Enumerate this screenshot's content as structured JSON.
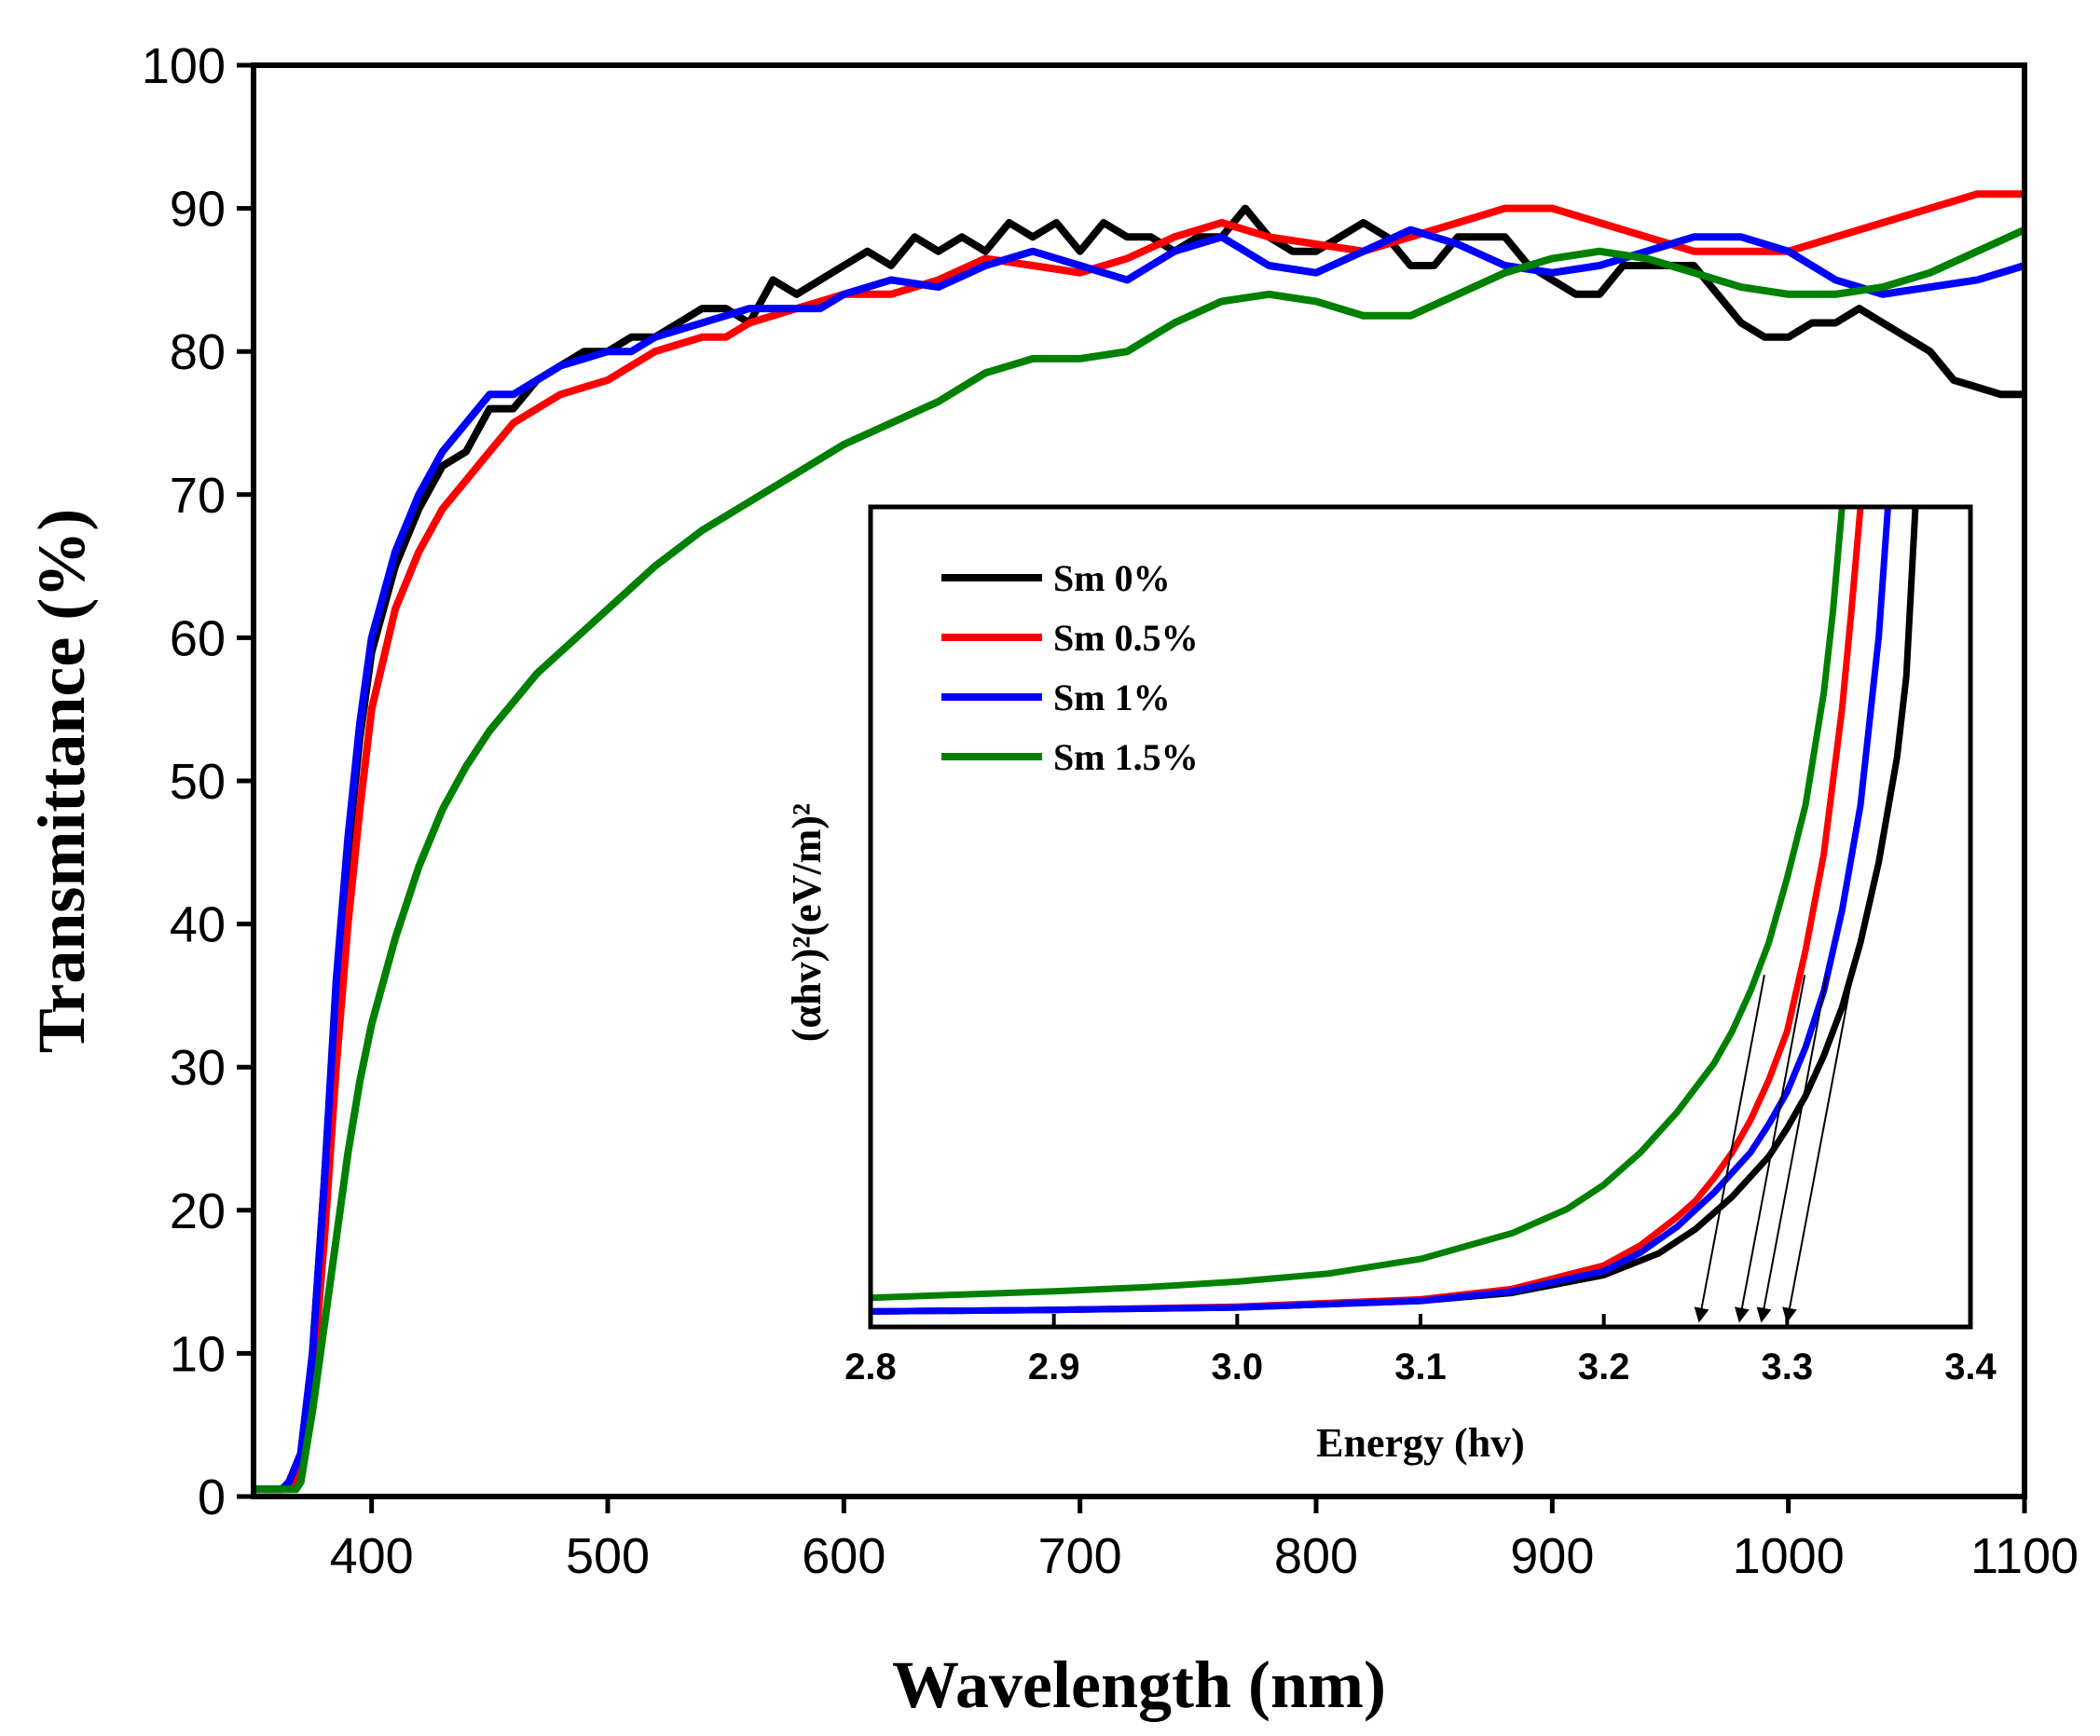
{
  "chart_data": [
    {
      "type": "line",
      "name": "main",
      "xlabel": "Wavelength (nm)",
      "ylabel": "Transmittance (%)",
      "xlim": [
        350,
        1100
      ],
      "ylim": [
        0,
        100
      ],
      "xticks": [
        "400",
        "500",
        "600",
        "700",
        "800",
        "900",
        "1000",
        "1100"
      ],
      "yticks": [
        "0",
        "10",
        "20",
        "30",
        "40",
        "50",
        "60",
        "70",
        "80",
        "90",
        "100"
      ],
      "series": [
        {
          "name": "Sm 0%",
          "color": "#000000",
          "x": [
            350,
            362,
            365,
            370,
            375,
            380,
            385,
            390,
            395,
            400,
            410,
            420,
            430,
            440,
            450,
            460,
            470,
            480,
            490,
            500,
            510,
            520,
            530,
            540,
            550,
            560,
            570,
            580,
            590,
            600,
            610,
            620,
            630,
            640,
            650,
            660,
            670,
            680,
            690,
            700,
            710,
            720,
            730,
            740,
            750,
            760,
            770,
            780,
            790,
            800,
            810,
            820,
            830,
            840,
            850,
            860,
            870,
            880,
            890,
            900,
            910,
            920,
            930,
            940,
            950,
            960,
            970,
            980,
            990,
            1000,
            1010,
            1020,
            1030,
            1040,
            1050,
            1060,
            1070,
            1080,
            1090,
            1100
          ],
          "y": [
            0.5,
            0.5,
            1,
            3,
            10,
            22,
            35,
            45,
            53,
            59,
            65,
            69,
            72,
            73,
            76,
            76,
            78,
            79,
            80,
            80,
            81,
            81,
            82,
            83,
            83,
            82,
            85,
            84,
            85,
            86,
            87,
            86,
            88,
            87,
            88,
            87,
            89,
            88,
            89,
            87,
            89,
            88,
            88,
            87,
            88,
            88,
            90,
            88,
            87,
            87,
            88,
            89,
            88,
            86,
            86,
            88,
            88,
            88,
            86,
            85,
            84,
            84,
            86,
            86,
            86,
            86,
            84,
            82,
            81,
            81,
            82,
            82,
            83,
            82,
            81,
            80,
            78,
            77.5,
            77,
            77
          ]
        },
        {
          "name": "Sm 0.5%",
          "color": "#ff0000",
          "x": [
            350,
            365,
            368,
            372,
            375,
            380,
            385,
            390,
            395,
            400,
            410,
            420,
            430,
            440,
            450,
            460,
            470,
            480,
            490,
            500,
            510,
            520,
            530,
            540,
            550,
            560,
            570,
            580,
            590,
            600,
            620,
            640,
            660,
            680,
            700,
            720,
            740,
            760,
            780,
            800,
            820,
            840,
            860,
            880,
            900,
            920,
            940,
            960,
            980,
            1000,
            1020,
            1040,
            1060,
            1080,
            1100
          ],
          "y": [
            0.5,
            0.5,
            1,
            3,
            8,
            18,
            30,
            40,
            48,
            55,
            62,
            66,
            69,
            71,
            73,
            75,
            76,
            77,
            77.5,
            78,
            79,
            80,
            80.5,
            81,
            81,
            82,
            82.5,
            83,
            83.5,
            84,
            84,
            85,
            86.5,
            86,
            85.5,
            86.5,
            88,
            89,
            88,
            87.5,
            87,
            88,
            89,
            90,
            90,
            89,
            88,
            87,
            87,
            87,
            88,
            89,
            90,
            91,
            91
          ]
        },
        {
          "name": "Sm 1%",
          "color": "#0000ff",
          "x": [
            350,
            362,
            365,
            370,
            375,
            380,
            385,
            390,
            395,
            400,
            410,
            420,
            430,
            440,
            450,
            460,
            470,
            480,
            490,
            500,
            510,
            520,
            530,
            540,
            550,
            560,
            570,
            580,
            590,
            600,
            620,
            640,
            660,
            680,
            700,
            720,
            740,
            760,
            780,
            800,
            820,
            840,
            860,
            880,
            900,
            920,
            940,
            960,
            980,
            1000,
            1020,
            1040,
            1060,
            1080,
            1100
          ],
          "y": [
            0.5,
            0.5,
            1,
            3,
            10,
            22,
            36,
            46,
            54,
            60,
            66,
            70,
            73,
            75,
            77,
            77,
            78,
            79,
            79.5,
            80,
            80,
            81,
            81.5,
            82,
            82.5,
            83,
            83,
            83,
            83,
            84,
            85,
            84.5,
            86,
            87,
            86,
            85,
            87,
            88,
            86,
            85.5,
            87,
            88.5,
            87.5,
            86,
            85.5,
            86,
            87,
            88,
            88,
            87,
            85,
            84,
            84.5,
            85,
            86
          ]
        },
        {
          "name": "Sm 1.5%",
          "color": "#008000",
          "x": [
            350,
            368,
            370,
            372,
            375,
            380,
            385,
            390,
            395,
            400,
            410,
            420,
            430,
            440,
            450,
            460,
            470,
            480,
            490,
            500,
            520,
            540,
            560,
            580,
            600,
            620,
            640,
            660,
            680,
            700,
            720,
            740,
            760,
            780,
            800,
            820,
            840,
            860,
            880,
            900,
            920,
            940,
            960,
            980,
            1000,
            1020,
            1040,
            1060,
            1080,
            1100
          ],
          "y": [
            0.5,
            0.5,
            1,
            3,
            6,
            12,
            18,
            24,
            29,
            33,
            39,
            44,
            48,
            51,
            53.5,
            55.5,
            57.5,
            59,
            60.5,
            62,
            65,
            67.5,
            69.5,
            71.5,
            73.5,
            75,
            76.5,
            78.5,
            79.5,
            79.5,
            80,
            82,
            83.5,
            84,
            83.5,
            82.5,
            82.5,
            84,
            85.5,
            86.5,
            87,
            86.5,
            85.5,
            84.5,
            84,
            84,
            84.5,
            85.5,
            87,
            88.5
          ]
        }
      ]
    },
    {
      "type": "line",
      "name": "inset",
      "xlabel": "Energy (hv)",
      "ylabel": "(αhv)²(eV/m)²",
      "xlim": [
        2.8,
        3.4
      ],
      "ylim": [
        0,
        100
      ],
      "xticks": [
        "2.8",
        "2.9",
        "3.0",
        "3.1",
        "3.2",
        "3.3",
        "3.4"
      ],
      "legend": "top-left",
      "series": [
        {
          "name": "Sm 0%",
          "color": "#000000",
          "intercept": 3.3,
          "x": [
            2.8,
            2.9,
            3.0,
            3.1,
            3.15,
            3.2,
            3.23,
            3.25,
            3.27,
            3.29,
            3.3,
            3.31,
            3.32,
            3.33,
            3.34,
            3.35,
            3.36,
            3.365,
            3.37
          ],
          "y": [
            0.3,
            0.5,
            0.8,
            1.6,
            2.6,
            4.8,
            7.5,
            10.5,
            14.5,
            19.5,
            23,
            27,
            32,
            38,
            46,
            56,
            69,
            79,
            100
          ]
        },
        {
          "name": "Sm 0.5%",
          "color": "#ff0000",
          "intercept": 3.274,
          "x": [
            2.8,
            2.9,
            3.0,
            3.1,
            3.15,
            3.2,
            3.22,
            3.24,
            3.25,
            3.26,
            3.27,
            3.28,
            3.29,
            3.3,
            3.31,
            3.32,
            3.33,
            3.335,
            3.34
          ],
          "y": [
            0.3,
            0.5,
            0.9,
            1.8,
            3.1,
            6,
            8.5,
            12,
            14,
            16.8,
            20,
            24,
            29,
            35,
            45,
            57,
            75,
            87,
            100
          ]
        },
        {
          "name": "Sm 1%",
          "color": "#0000ff",
          "intercept": 3.286,
          "x": [
            2.8,
            2.9,
            3.0,
            3.1,
            3.15,
            3.2,
            3.22,
            3.24,
            3.26,
            3.28,
            3.29,
            3.3,
            3.31,
            3.32,
            3.33,
            3.34,
            3.35,
            3.355
          ],
          "y": [
            0.3,
            0.5,
            0.8,
            1.6,
            2.8,
            5.3,
            7.6,
            10.8,
            15,
            20,
            23.5,
            27.5,
            33,
            40,
            50,
            63,
            84,
            100
          ]
        },
        {
          "name": "Sm 1.5%",
          "color": "#008000",
          "intercept": 3.252,
          "x": [
            2.8,
            2.85,
            2.9,
            2.95,
            3.0,
            3.05,
            3.1,
            3.15,
            3.18,
            3.2,
            3.22,
            3.24,
            3.26,
            3.27,
            3.28,
            3.29,
            3.3,
            3.31,
            3.32,
            3.325,
            3.33
          ],
          "y": [
            2,
            2.4,
            2.8,
            3.3,
            4,
            5,
            6.8,
            10,
            13,
            16,
            20,
            25,
            31,
            35,
            40,
            46,
            54,
            63,
            77,
            87,
            100
          ]
        }
      ]
    }
  ]
}
